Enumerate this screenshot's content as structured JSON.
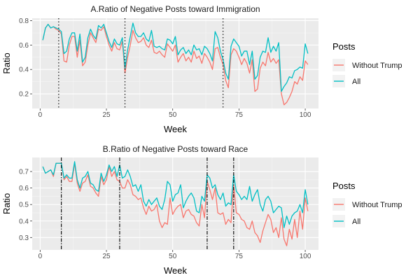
{
  "chart_data": [
    {
      "type": "line",
      "title": "A.Ratio of Negative Posts toward Immigration",
      "xlabel": "Week",
      "ylabel": "Ratio",
      "xlim": [
        -3,
        105
      ],
      "ylim": [
        0.08,
        0.82
      ],
      "xticks": [
        0,
        25,
        50,
        75,
        100
      ],
      "yticks": [
        0.2,
        0.4,
        0.6,
        0.8
      ],
      "grid": true,
      "legend_title": "Posts",
      "legend_position": "right",
      "vlines": [
        7,
        32,
        69
      ],
      "vline_style": "dotted",
      "x": [
        1,
        2,
        3,
        4,
        5,
        6,
        7,
        8,
        9,
        10,
        11,
        12,
        13,
        14,
        15,
        16,
        17,
        18,
        19,
        20,
        21,
        22,
        23,
        24,
        25,
        26,
        27,
        28,
        29,
        30,
        31,
        32,
        33,
        34,
        35,
        36,
        37,
        38,
        39,
        40,
        41,
        42,
        43,
        44,
        45,
        46,
        47,
        48,
        49,
        50,
        51,
        52,
        53,
        54,
        55,
        56,
        57,
        58,
        59,
        60,
        61,
        62,
        63,
        64,
        65,
        66,
        67,
        68,
        69,
        70,
        71,
        72,
        73,
        74,
        75,
        76,
        77,
        78,
        79,
        80,
        81,
        82,
        83,
        84,
        85,
        86,
        87,
        88,
        89,
        90,
        91,
        92,
        93,
        94,
        95,
        96,
        97,
        98,
        99,
        100,
        101
      ],
      "series": [
        {
          "name": "Without Trump",
          "color": "#F8766D",
          "values": [
            0.64,
            0.74,
            0.77,
            0.74,
            0.75,
            0.73,
            0.72,
            0.69,
            0.47,
            0.46,
            0.6,
            0.67,
            0.67,
            0.5,
            0.64,
            0.43,
            0.46,
            0.6,
            0.7,
            0.66,
            0.62,
            0.73,
            0.72,
            0.75,
            0.67,
            0.6,
            0.55,
            0.62,
            0.57,
            0.56,
            0.63,
            0.37,
            0.5,
            0.6,
            0.72,
            0.66,
            0.62,
            0.63,
            0.66,
            0.6,
            0.58,
            0.64,
            0.54,
            0.53,
            0.55,
            0.52,
            0.5,
            0.61,
            0.58,
            0.55,
            0.6,
            0.46,
            0.5,
            0.53,
            0.47,
            0.5,
            0.46,
            0.55,
            0.49,
            0.51,
            0.45,
            0.53,
            0.5,
            0.46,
            0.4,
            0.57,
            0.58,
            0.5,
            0.44,
            0.31,
            0.25,
            0.52,
            0.57,
            0.55,
            0.5,
            0.44,
            0.49,
            0.45,
            0.37,
            0.48,
            0.22,
            0.24,
            0.41,
            0.46,
            0.43,
            0.54,
            0.46,
            0.49,
            0.45,
            0.48,
            0.2,
            0.11,
            0.13,
            0.17,
            0.22,
            0.3,
            0.28,
            0.34,
            0.31,
            0.47,
            0.44
          ]
        },
        {
          "name": "All",
          "color": "#00BFC4",
          "values": [
            0.64,
            0.74,
            0.77,
            0.74,
            0.75,
            0.74,
            0.73,
            0.71,
            0.53,
            0.55,
            0.65,
            0.7,
            0.7,
            0.55,
            0.69,
            0.46,
            0.5,
            0.66,
            0.73,
            0.68,
            0.65,
            0.76,
            0.74,
            0.77,
            0.7,
            0.63,
            0.58,
            0.65,
            0.61,
            0.6,
            0.66,
            0.41,
            0.56,
            0.67,
            0.78,
            0.7,
            0.67,
            0.67,
            0.7,
            0.65,
            0.63,
            0.72,
            0.59,
            0.58,
            0.59,
            0.57,
            0.56,
            0.65,
            0.64,
            0.61,
            0.67,
            0.52,
            0.56,
            0.58,
            0.53,
            0.56,
            0.52,
            0.6,
            0.56,
            0.57,
            0.52,
            0.59,
            0.57,
            0.53,
            0.47,
            0.71,
            0.66,
            0.55,
            0.48,
            0.37,
            0.32,
            0.59,
            0.65,
            0.62,
            0.59,
            0.51,
            0.55,
            0.55,
            0.44,
            0.55,
            0.32,
            0.35,
            0.5,
            0.55,
            0.54,
            0.66,
            0.54,
            0.59,
            0.55,
            0.62,
            0.22,
            0.26,
            0.29,
            0.34,
            0.33,
            0.39,
            0.4,
            0.42,
            0.41,
            0.61,
            0.53
          ]
        }
      ]
    },
    {
      "type": "line",
      "title": "B.Ratio of Negative Posts toward Race",
      "xlabel": "Week",
      "ylabel": "Ratio",
      "xlim": [
        -3,
        105
      ],
      "ylim": [
        0.225,
        0.785
      ],
      "xticks": [
        0,
        25,
        50,
        75,
        100
      ],
      "yticks": [
        0.3,
        0.4,
        0.5,
        0.6,
        0.7
      ],
      "grid": true,
      "legend_title": "Posts",
      "legend_position": "right",
      "vlines": [
        8,
        30,
        63,
        73
      ],
      "vline_style": "dashdot",
      "x": [
        1,
        2,
        3,
        4,
        5,
        6,
        7,
        8,
        9,
        10,
        11,
        12,
        13,
        14,
        15,
        16,
        17,
        18,
        19,
        20,
        21,
        22,
        23,
        24,
        25,
        26,
        27,
        28,
        29,
        30,
        31,
        32,
        33,
        34,
        35,
        36,
        37,
        38,
        39,
        40,
        41,
        42,
        43,
        44,
        45,
        46,
        47,
        48,
        49,
        50,
        51,
        52,
        53,
        54,
        55,
        56,
        57,
        58,
        59,
        60,
        61,
        62,
        63,
        64,
        65,
        66,
        67,
        68,
        69,
        70,
        71,
        72,
        73,
        74,
        75,
        76,
        77,
        78,
        79,
        80,
        81,
        82,
        83,
        84,
        85,
        86,
        87,
        88,
        89,
        90,
        91,
        92,
        93,
        94,
        95,
        96,
        97,
        98,
        99,
        100,
        101
      ],
      "series": [
        {
          "name": "Without Trump",
          "color": "#F8766D",
          "values": [
            0.73,
            0.69,
            0.7,
            0.71,
            0.67,
            0.75,
            0.75,
            0.75,
            0.65,
            0.67,
            0.64,
            0.64,
            0.75,
            0.63,
            0.58,
            0.63,
            0.64,
            0.68,
            0.61,
            0.6,
            0.57,
            0.55,
            0.67,
            0.62,
            0.65,
            0.73,
            0.67,
            0.7,
            0.65,
            0.64,
            0.6,
            0.6,
            0.65,
            0.62,
            0.56,
            0.55,
            0.53,
            0.54,
            0.48,
            0.44,
            0.49,
            0.46,
            0.47,
            0.5,
            0.4,
            0.36,
            0.39,
            0.38,
            0.54,
            0.44,
            0.47,
            0.49,
            0.5,
            0.42,
            0.46,
            0.47,
            0.44,
            0.43,
            0.39,
            0.37,
            0.5,
            0.42,
            0.64,
            0.59,
            0.53,
            0.6,
            0.45,
            0.44,
            0.45,
            0.38,
            0.41,
            0.39,
            0.62,
            0.45,
            0.44,
            0.41,
            0.4,
            0.36,
            0.35,
            0.4,
            0.33,
            0.31,
            0.27,
            0.34,
            0.39,
            0.44,
            0.41,
            0.33,
            0.36,
            0.3,
            0.42,
            0.29,
            0.25,
            0.35,
            0.29,
            0.41,
            0.3,
            0.46,
            0.35,
            0.54,
            0.46
          ]
        },
        {
          "name": "All",
          "color": "#00BFC4",
          "values": [
            0.73,
            0.69,
            0.7,
            0.71,
            0.68,
            0.75,
            0.75,
            0.75,
            0.66,
            0.68,
            0.66,
            0.66,
            0.76,
            0.65,
            0.6,
            0.66,
            0.67,
            0.7,
            0.63,
            0.62,
            0.59,
            0.58,
            0.69,
            0.64,
            0.68,
            0.74,
            0.7,
            0.73,
            0.67,
            0.74,
            0.66,
            0.67,
            0.71,
            0.67,
            0.61,
            0.62,
            0.58,
            0.62,
            0.52,
            0.49,
            0.53,
            0.5,
            0.52,
            0.54,
            0.49,
            0.47,
            0.53,
            0.64,
            0.62,
            0.52,
            0.56,
            0.57,
            0.62,
            0.48,
            0.52,
            0.55,
            0.57,
            0.54,
            0.46,
            0.45,
            0.55,
            0.52,
            0.68,
            0.66,
            0.6,
            0.62,
            0.56,
            0.53,
            0.57,
            0.49,
            0.51,
            0.5,
            0.68,
            0.58,
            0.56,
            0.53,
            0.55,
            0.53,
            0.61,
            0.52,
            0.56,
            0.59,
            0.5,
            0.46,
            0.53,
            0.55,
            0.52,
            0.45,
            0.47,
            0.49,
            0.48,
            0.36,
            0.43,
            0.38,
            0.43,
            0.45,
            0.46,
            0.5,
            0.45,
            0.59,
            0.5
          ]
        }
      ]
    }
  ]
}
